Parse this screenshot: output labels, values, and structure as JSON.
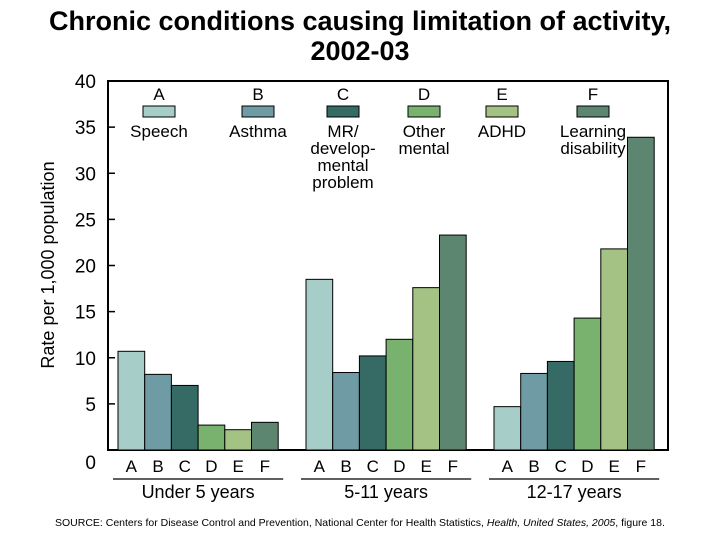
{
  "chart_data": {
    "type": "bar",
    "title": "Chronic conditions causing limitation of activity, 2002-03",
    "title_lines": [
      "Chronic conditions causing limitation of activity,",
      "2002-03"
    ],
    "ylabel": "Rate per 1,000 population",
    "ylim": [
      0,
      40
    ],
    "yticks": [
      0,
      5,
      10,
      15,
      20,
      25,
      30,
      35,
      40
    ],
    "categories": [
      "Under 5 years",
      "5-11 years",
      "12-17 years"
    ],
    "bar_letters": [
      "A",
      "B",
      "C",
      "D",
      "E",
      "F"
    ],
    "legend_position": "top",
    "series": [
      {
        "letter": "A",
        "name": "Speech",
        "name_lines": [
          "Speech"
        ],
        "color": "#a7cdc9",
        "values": [
          10.7,
          18.5,
          4.7
        ]
      },
      {
        "letter": "B",
        "name": "Asthma",
        "name_lines": [
          "Asthma"
        ],
        "color": "#6f9ba4",
        "values": [
          8.2,
          8.4,
          8.3
        ]
      },
      {
        "letter": "C",
        "name": "MR/ developmental problem",
        "name_lines": [
          "MR/",
          "develop-",
          "mental",
          "problem"
        ],
        "color": "#356a65",
        "values": [
          7.0,
          10.2,
          9.6
        ]
      },
      {
        "letter": "D",
        "name": "Other mental",
        "name_lines": [
          "Other",
          "mental"
        ],
        "color": "#79b26e",
        "values": [
          2.7,
          12.0,
          14.3
        ]
      },
      {
        "letter": "E",
        "name": "ADHD",
        "name_lines": [
          "ADHD"
        ],
        "color": "#a3c283",
        "values": [
          2.2,
          17.6,
          21.8
        ]
      },
      {
        "letter": "F",
        "name": "Learning disability",
        "name_lines": [
          "Learning",
          "disability"
        ],
        "color": "#5d8670",
        "values": [
          3.0,
          23.3,
          33.9
        ]
      }
    ]
  },
  "footer": {
    "source_prefix": "SOURCE: Centers for Disease Control and Prevention, National Center for Health Statistics, ",
    "source_publication": "Health, United States, 2005",
    "source_suffix": ", figure 18."
  }
}
